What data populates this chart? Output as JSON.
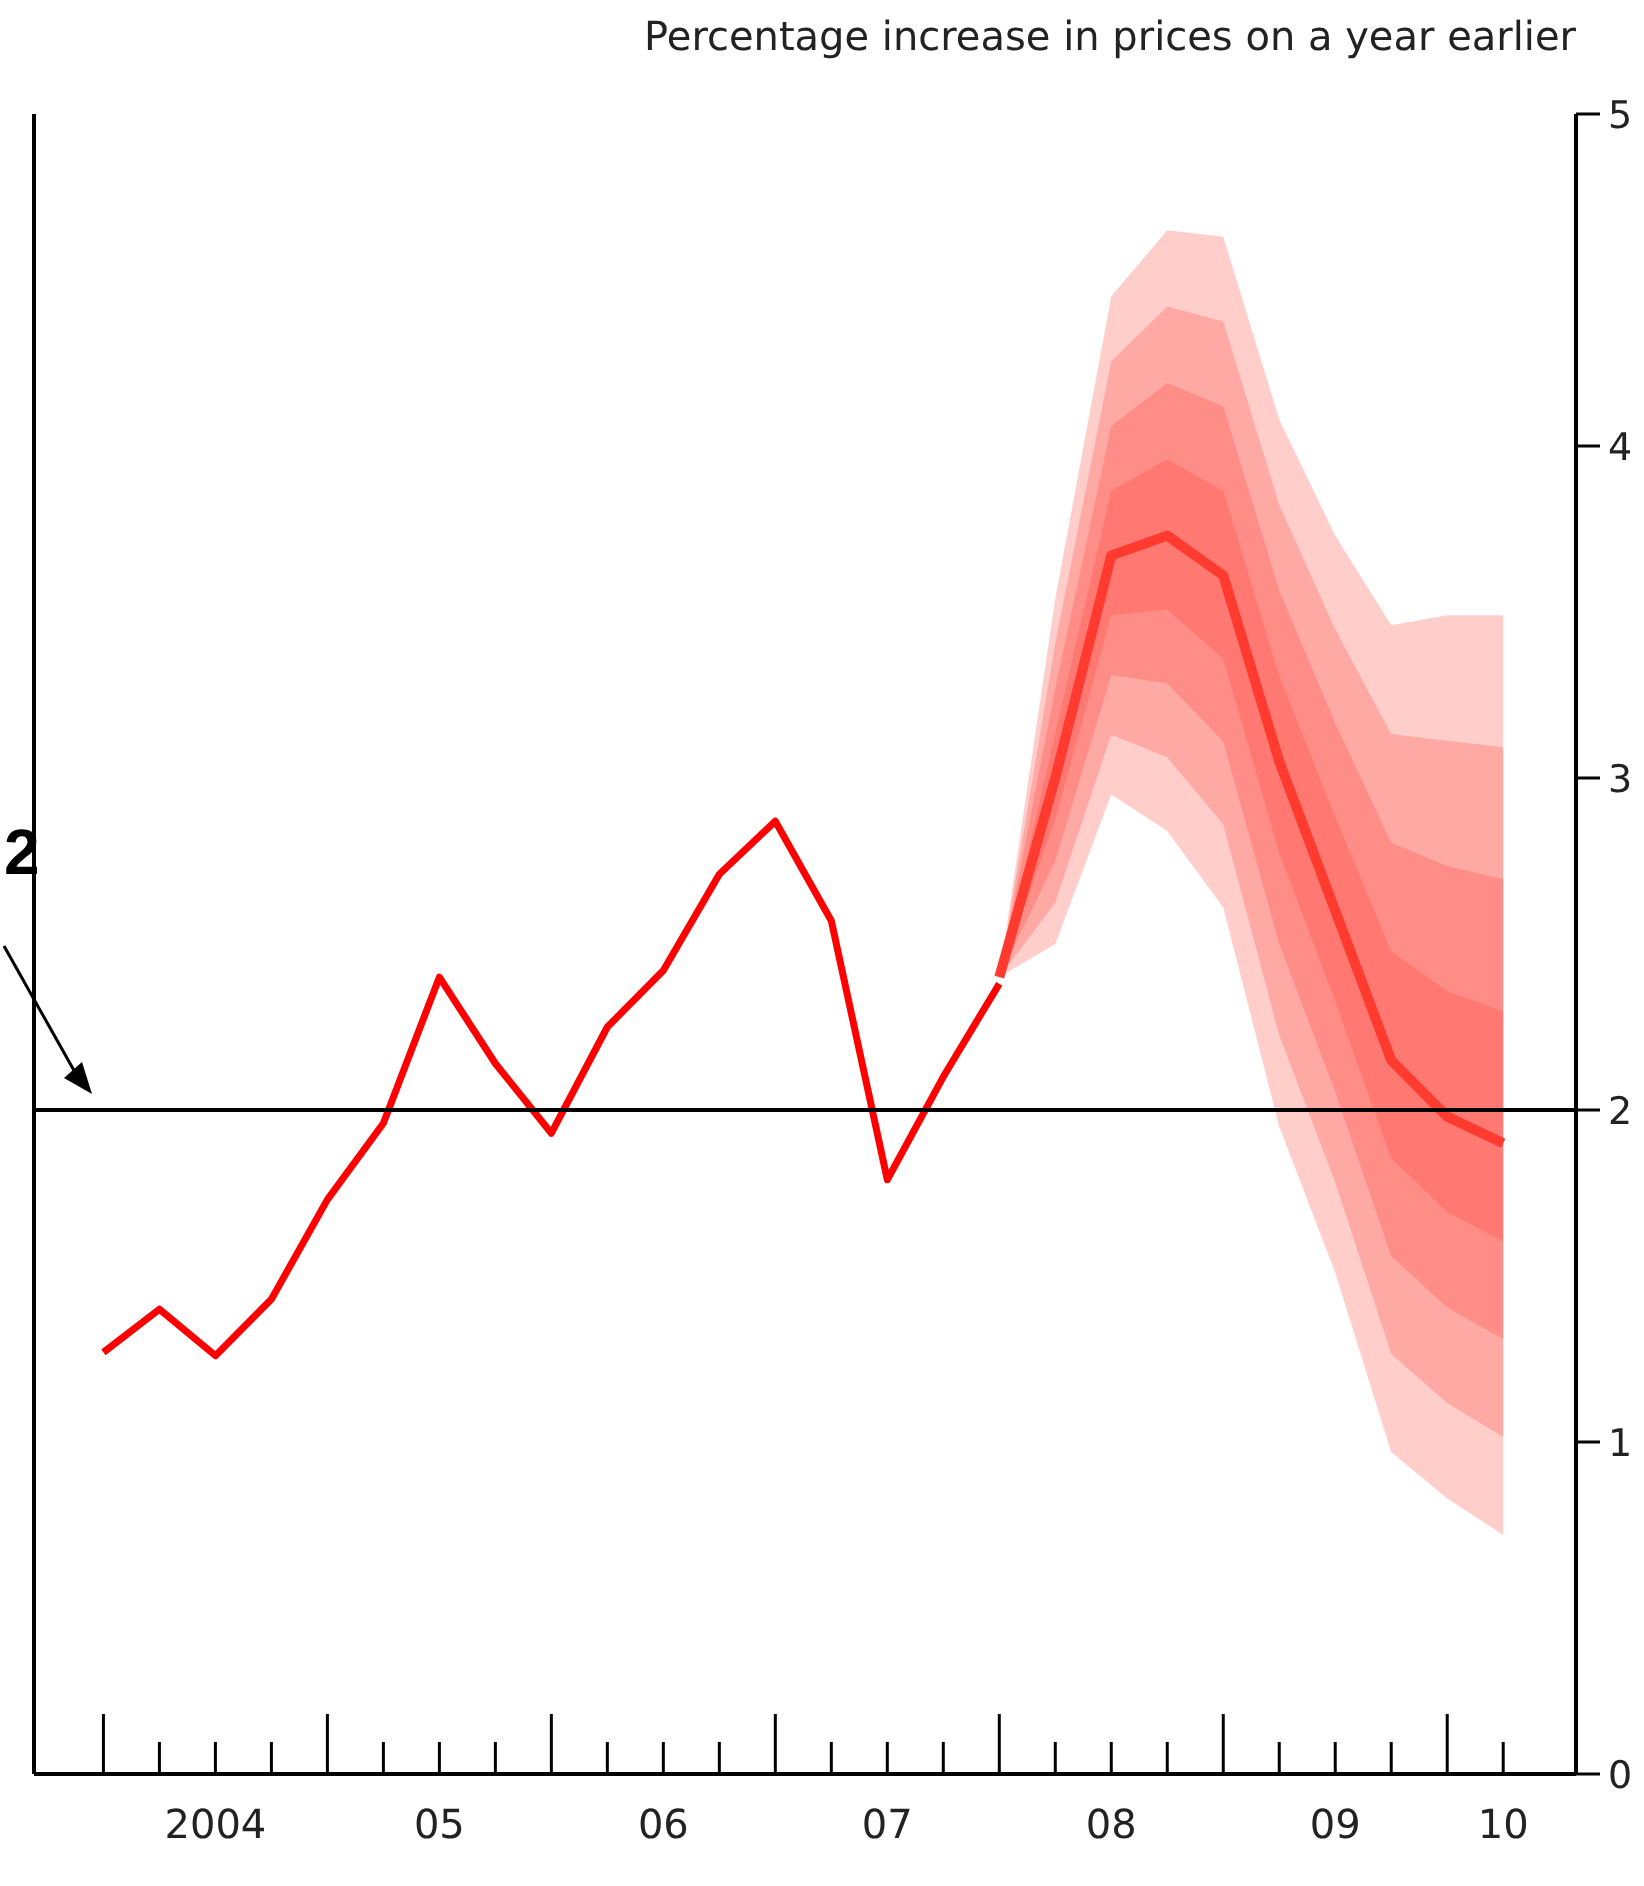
{
  "chart_data": {
    "type": "line",
    "ylabel": "Percentage increase in prices on a year earlier",
    "categories": [
      null,
      null,
      "2004",
      null,
      null,
      null,
      "05",
      null,
      null,
      null,
      "06",
      null,
      null,
      null,
      "07",
      null,
      null,
      null,
      "08",
      null,
      null,
      null,
      "09",
      null,
      null,
      "10"
    ],
    "ylim": [
      0,
      5
    ],
    "yticks": [
      0,
      1,
      2,
      3,
      4,
      5
    ],
    "ref_lines": [
      {
        "axis": "y",
        "value": 2,
        "label": "2",
        "color": "#000000"
      }
    ],
    "series": [
      {
        "color": "#ff0000",
        "values": [
          1.27,
          1.4,
          1.26,
          1.43,
          1.73,
          1.96,
          2.4,
          2.14,
          1.93,
          2.25,
          2.42,
          2.71,
          2.87,
          2.57,
          1.79,
          2.1,
          2.38,
          null,
          null,
          null,
          null,
          null,
          null,
          null,
          null,
          null
        ]
      },
      {
        "color": "#ff3b30",
        "values": [
          null,
          null,
          null,
          null,
          null,
          null,
          null,
          null,
          null,
          null,
          null,
          null,
          null,
          null,
          null,
          null,
          2.4,
          3.0,
          3.67,
          3.73,
          3.61,
          3.05,
          2.6,
          2.15,
          1.98,
          1.9
        ],
        "lower": [
          null,
          null,
          null,
          null,
          null,
          null,
          null,
          null,
          null,
          null,
          null,
          null,
          null,
          null,
          null,
          null,
          2.4,
          2.5,
          2.95,
          2.84,
          2.61,
          1.95,
          1.51,
          0.97,
          0.83,
          0.72
        ],
        "upper": [
          null,
          null,
          null,
          null,
          null,
          null,
          null,
          null,
          null,
          null,
          null,
          null,
          null,
          null,
          null,
          null,
          2.4,
          3.54,
          4.45,
          4.65,
          4.63,
          4.08,
          3.73,
          3.46,
          3.49,
          3.49
        ]
      }
    ]
  }
}
